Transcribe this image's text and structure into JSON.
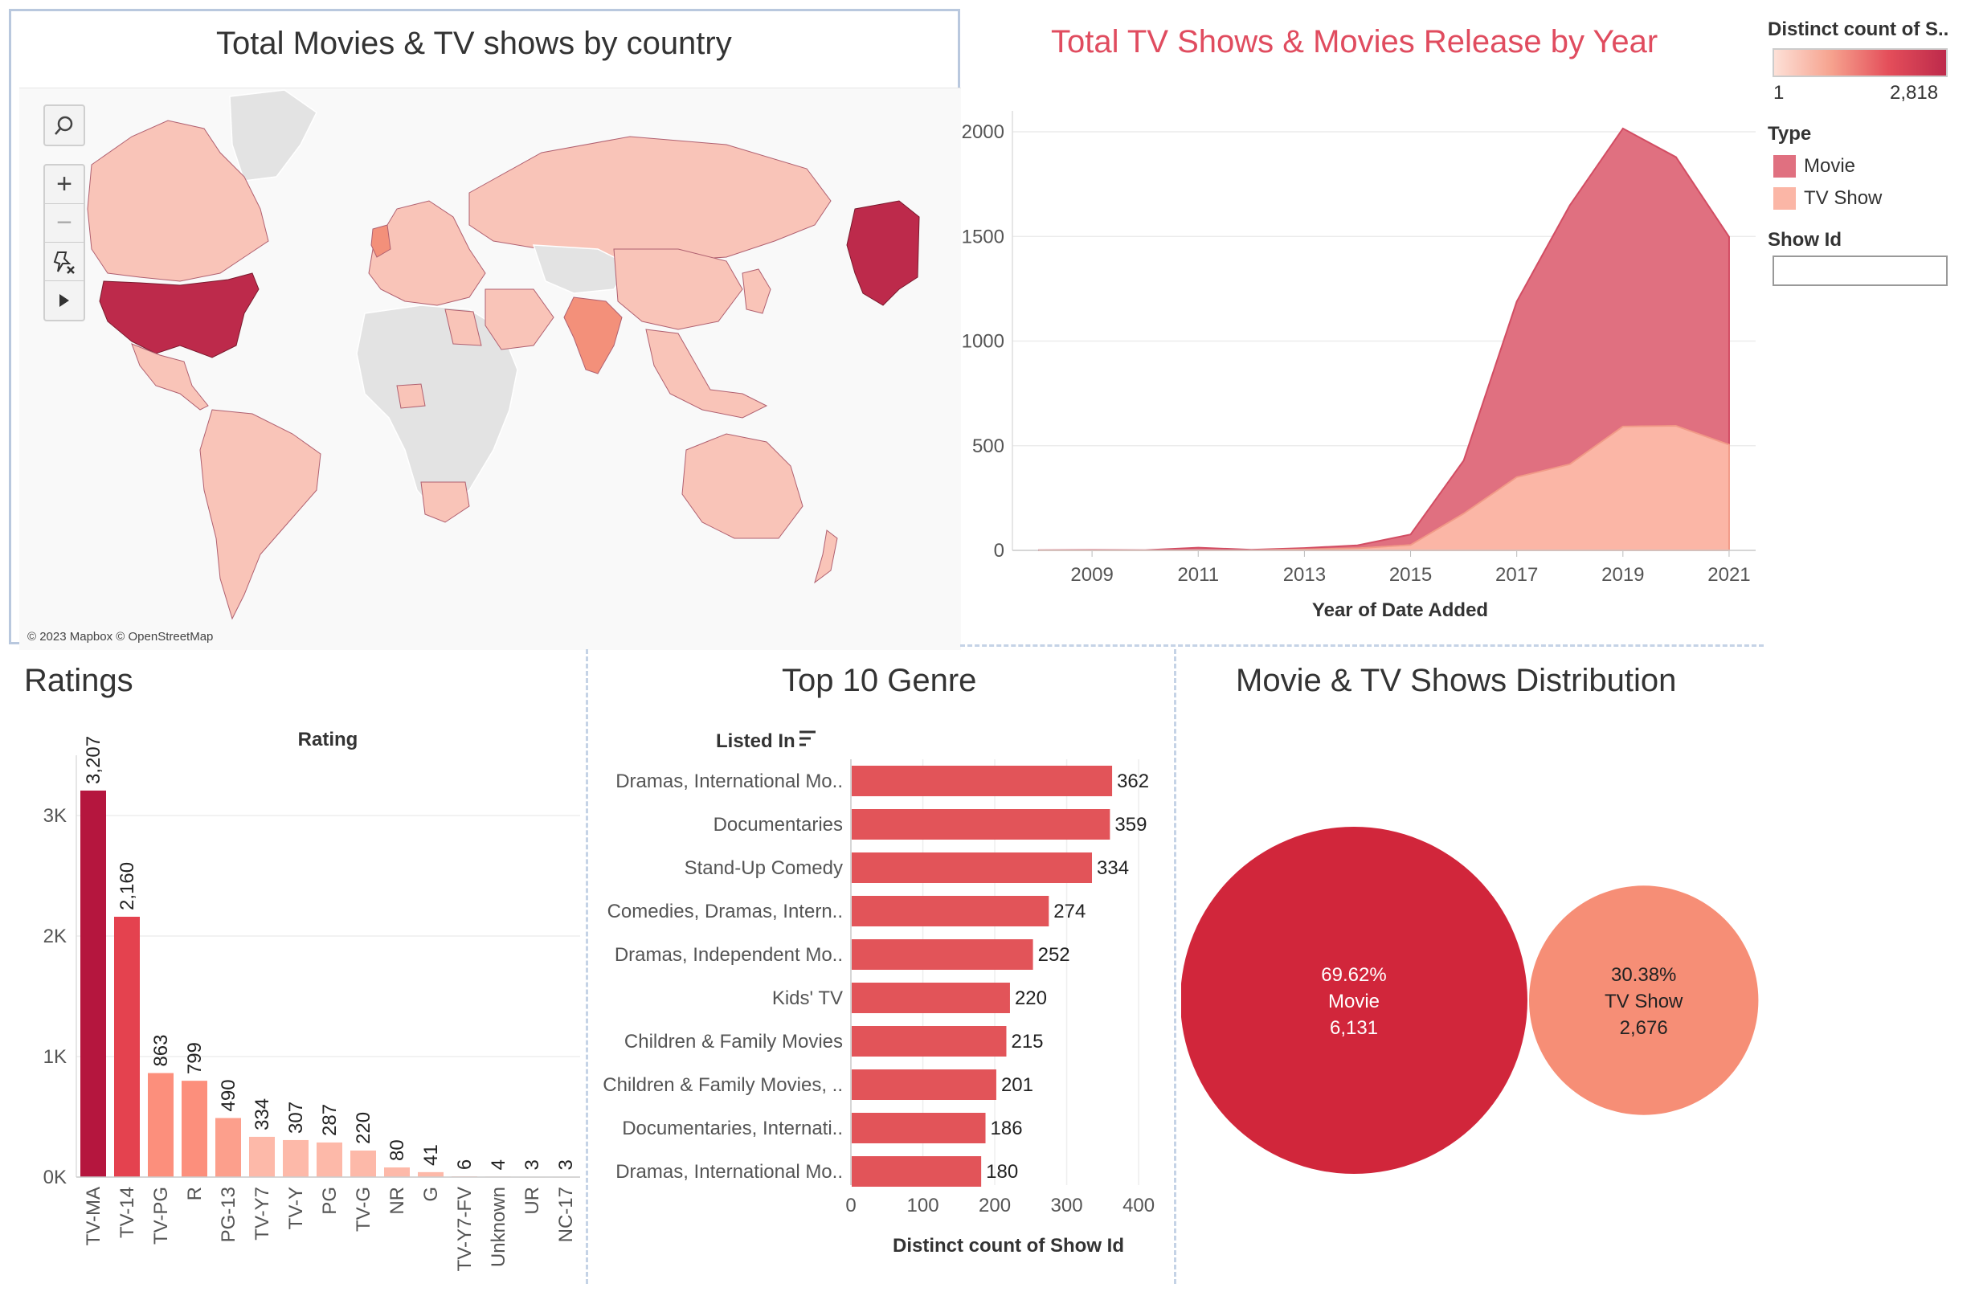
{
  "map_panel": {
    "title": "Total Movies & TV shows by country",
    "attribution": "© 2023 Mapbox © OpenStreetMap",
    "controls": [
      "search-icon",
      "zoom-in-icon",
      "zoom-out-icon",
      "pin-icon",
      "play-icon"
    ]
  },
  "colors": {
    "movie": "#e07080",
    "tv_show": "#fbb6a6",
    "map_max": "#bd2a4b",
    "map_mid": "#f3907a",
    "map_low": "#f9c4b8",
    "map_none": "#e3e3e3",
    "ratings_max": "#b5163e",
    "ratings_high": "#e4424f",
    "ratings_mid": "#fc8f7c",
    "ratings_low": "#fdb9a9",
    "genre_bar": "#e25459",
    "movie_bubble": "#d1263b",
    "tv_bubble": "#f68e76"
  },
  "legend": {
    "color_title": "Distinct count of S..",
    "color_min": "1",
    "color_max": "2,818",
    "type_title": "Type",
    "type_items": [
      {
        "label": "Movie",
        "color": "#e07080"
      },
      {
        "label": "TV Show",
        "color": "#fbb6a6"
      }
    ],
    "filter_title": "Show Id",
    "filter_value": ""
  },
  "chart_data": [
    {
      "type": "area",
      "title": "Total TV Shows & Movies Release by Year",
      "xlabel": "Year of Date Added",
      "ylabel": "",
      "x": [
        2008,
        2009,
        2010,
        2011,
        2012,
        2013,
        2014,
        2015,
        2016,
        2017,
        2018,
        2019,
        2020,
        2021
      ],
      "x_ticks": [
        "2009",
        "2011",
        "2013",
        "2015",
        "2017",
        "2019",
        "2021"
      ],
      "y_ticks": [
        "0",
        "500",
        "1000",
        "1500",
        "2000"
      ],
      "ylim": [
        0,
        2100
      ],
      "stacked": true,
      "series": [
        {
          "name": "TV Show",
          "values": [
            0,
            0,
            0,
            0,
            0,
            5,
            10,
            26,
            176,
            350,
            412,
            592,
            595,
            505
          ]
        },
        {
          "name": "Movie",
          "values": [
            1,
            2,
            1,
            13,
            3,
            6,
            14,
            50,
            253,
            839,
            1237,
            1424,
            1284,
            993
          ]
        }
      ],
      "grid": true
    },
    {
      "type": "bar",
      "title": "Ratings",
      "xlabel": "Rating",
      "categories": [
        "TV-MA",
        "TV-14",
        "TV-PG",
        "R",
        "PG-13",
        "TV-Y7",
        "TV-Y",
        "PG",
        "TV-G",
        "NR",
        "G",
        "TV-Y7-FV",
        "Unknown",
        "UR",
        "NC-17"
      ],
      "values": [
        3207,
        2160,
        863,
        799,
        490,
        334,
        307,
        287,
        220,
        80,
        41,
        6,
        4,
        3,
        3
      ],
      "data_labels": [
        "3,207",
        "2,160",
        "863",
        "799",
        "490",
        "334",
        "307",
        "287",
        "220",
        "80",
        "41",
        "6",
        "4",
        "3",
        "3"
      ],
      "y_ticks": [
        "0K",
        "1K",
        "2K",
        "3K"
      ],
      "ylim": [
        0,
        3500
      ],
      "grid": true
    },
    {
      "type": "bar",
      "orientation": "horizontal",
      "title": "Top 10 Genre",
      "ylabel": "Listed In",
      "xlabel": "Distinct count of Show Id",
      "categories": [
        "Dramas, International Mo..",
        "Documentaries",
        "Stand-Up Comedy",
        "Comedies, Dramas, Intern..",
        "Dramas, Independent Mo..",
        "Kids' TV",
        "Children & Family Movies",
        "Children & Family Movies, ..",
        "Documentaries, Internati..",
        "Dramas, International Mo.."
      ],
      "values": [
        362,
        359,
        334,
        274,
        252,
        220,
        215,
        201,
        186,
        180
      ],
      "x_ticks": [
        "0",
        "100",
        "200",
        "300",
        "400"
      ],
      "xlim": [
        0,
        420
      ],
      "grid": true
    },
    {
      "type": "pie",
      "title": "Movie & TV Shows Distribution",
      "categories": [
        "Movie",
        "TV Show"
      ],
      "values": [
        6131,
        2676
      ],
      "percent_labels": [
        "69.62%",
        "30.38%"
      ],
      "value_labels": [
        "6,131",
        "2,676"
      ]
    }
  ]
}
